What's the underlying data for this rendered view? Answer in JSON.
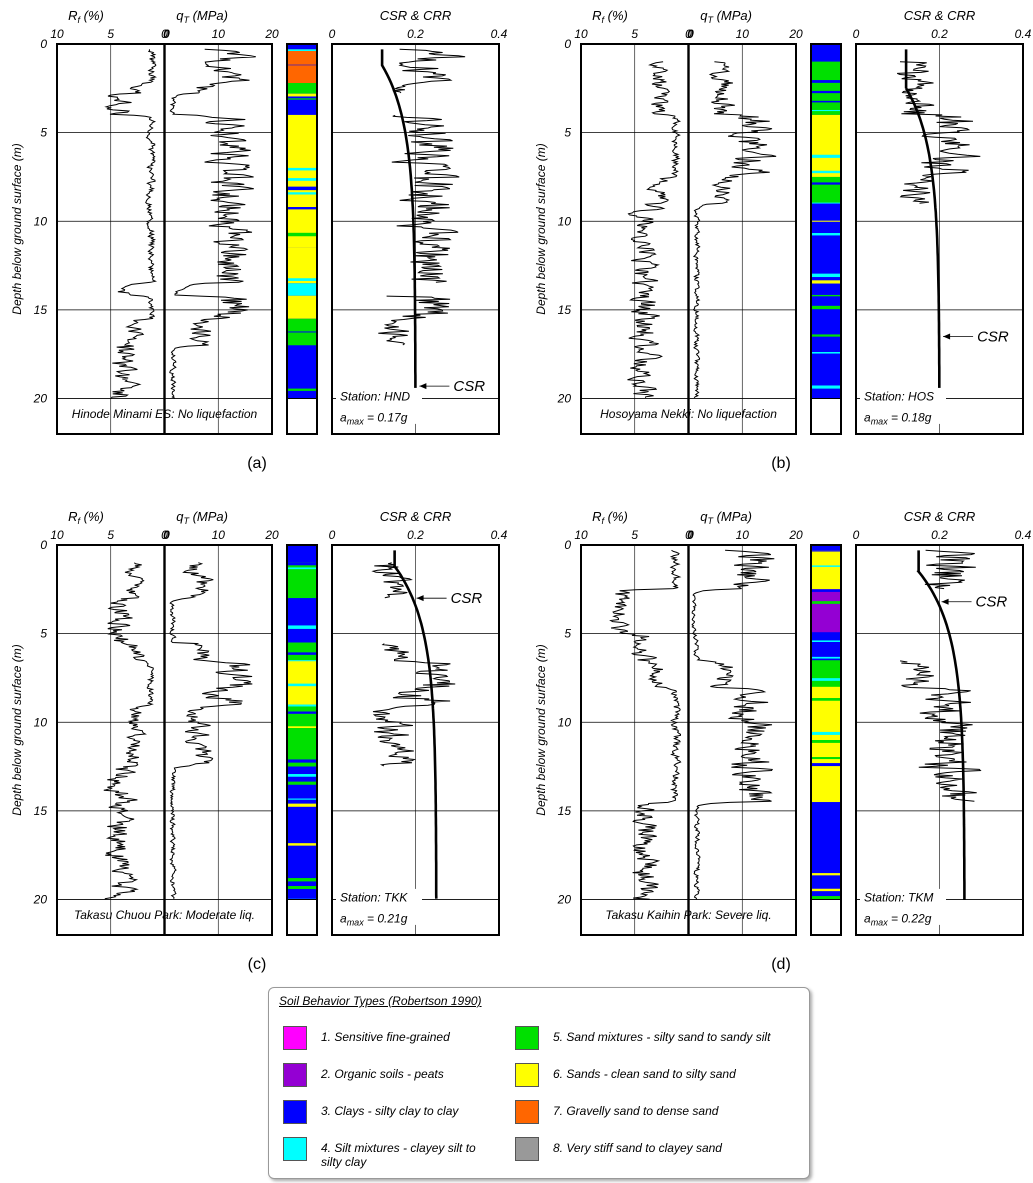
{
  "chart_data": [
    {
      "type": "line",
      "panel_label": "(a)",
      "site": "Hinode Minami ES: No liquefaction",
      "station": "Station: HND",
      "amax_prefix": "a",
      "amax_sub": "max",
      "amax_value": " = 0.17g",
      "csr_label": "CSR",
      "csr_ann_depth": 19.3,
      "csr": {
        "shallow": 1.2,
        "start": 0.12,
        "deep": 0.2
      },
      "soil_layers": [
        {
          "from": 0.3,
          "to": 1.2,
          "type": 7
        },
        {
          "from": 1.2,
          "to": 2.2,
          "type": 7
        },
        {
          "from": 2.2,
          "to": 2.8,
          "type": 5
        },
        {
          "from": 2.8,
          "to": 4.0,
          "type": 3
        },
        {
          "from": 4.0,
          "to": 11.5,
          "type": 6
        },
        {
          "from": 11.5,
          "to": 13.5,
          "type": 6
        },
        {
          "from": 13.5,
          "to": 14.2,
          "type": 4
        },
        {
          "from": 14.2,
          "to": 15.5,
          "type": 6
        },
        {
          "from": 15.5,
          "to": 17.0,
          "type": 5
        },
        {
          "from": 17.0,
          "to": 20.0,
          "type": 3
        }
      ],
      "seed": 11
    },
    {
      "type": "line",
      "panel_label": "(b)",
      "site": "Hosoyama Nekki: No liquefaction",
      "station": "Station: HOS",
      "amax_prefix": "a",
      "amax_sub": "max",
      "amax_value": " = 0.18g",
      "csr_label": "CSR",
      "csr_ann_depth": 16.5,
      "csr": {
        "shallow": 2.5,
        "start": 0.12,
        "deep": 0.2
      },
      "soil_layers": [
        {
          "from": 1.0,
          "to": 4.0,
          "type": 5
        },
        {
          "from": 4.0,
          "to": 7.5,
          "type": 6
        },
        {
          "from": 7.5,
          "to": 9.0,
          "type": 5
        },
        {
          "from": 9.0,
          "to": 20.0,
          "type": 3
        }
      ],
      "seed": 23
    },
    {
      "type": "line",
      "panel_label": "(c)",
      "site": "Takasu Chuou Park: Moderate liq.",
      "station": "Station: TKK",
      "amax_prefix": "a",
      "amax_sub": "max",
      "amax_value": " = 0.21g",
      "csr_label": "CSR",
      "csr_ann_depth": 3.0,
      "csr": {
        "shallow": 1.2,
        "start": 0.15,
        "deep": 0.25
      },
      "soil_layers": [
        {
          "from": 1.0,
          "to": 3.0,
          "type": 5
        },
        {
          "from": 3.0,
          "to": 5.5,
          "type": 3
        },
        {
          "from": 5.5,
          "to": 6.5,
          "type": 5
        },
        {
          "from": 6.5,
          "to": 9.0,
          "type": 6
        },
        {
          "from": 9.0,
          "to": 12.5,
          "type": 5
        },
        {
          "from": 12.5,
          "to": 20.0,
          "type": 3
        }
      ],
      "seed": 37
    },
    {
      "type": "line",
      "panel_label": "(d)",
      "site": "Takasu Kaihin Park: Severe liq.",
      "station": "Station: TKM",
      "amax_prefix": "a",
      "amax_sub": "max",
      "amax_value": " = 0.22g",
      "csr_label": "CSR",
      "csr_ann_depth": 3.2,
      "csr": {
        "shallow": 1.5,
        "start": 0.15,
        "deep": 0.26
      },
      "soil_layers": [
        {
          "from": 0.3,
          "to": 2.5,
          "type": 6
        },
        {
          "from": 2.5,
          "to": 5.0,
          "type": 2
        },
        {
          "from": 5.0,
          "to": 6.5,
          "type": 3
        },
        {
          "from": 6.5,
          "to": 8.0,
          "type": 5
        },
        {
          "from": 8.0,
          "to": 11.0,
          "type": 6
        },
        {
          "from": 11.0,
          "to": 14.5,
          "type": 6
        },
        {
          "from": 14.5,
          "to": 20.0,
          "type": 3
        }
      ],
      "seed": 53
    }
  ],
  "axes": {
    "rf_title_main": "R",
    "rf_title_sub": "f",
    "rf_title_rest": " (%)",
    "qt_title_main": "q",
    "qt_title_sub": "T",
    "qt_title_rest": " (MPa)",
    "csr_title": "CSR & CRR",
    "rf_ticks": [
      "10",
      "5",
      "0"
    ],
    "qt_ticks": [
      "0",
      "10",
      "20"
    ],
    "csr_ticks": [
      "0",
      "0.2",
      "0.4"
    ],
    "depth_ticks": [
      "0",
      "5",
      "10",
      "15",
      "20"
    ],
    "ylabel": "Depth below ground surface (m)",
    "depth_range": [
      0,
      22
    ],
    "rf_range": [
      10,
      0
    ],
    "qt_range": [
      0,
      20
    ],
    "csr_range": [
      0,
      0.4
    ]
  },
  "legend": {
    "title": "Soil Behavior Types (Robertson 1990)",
    "items": [
      {
        "label": "1. Sensitive fine-grained",
        "color": "#ff00ff"
      },
      {
        "label": "2. Organic soils - peats",
        "color": "#9400d3"
      },
      {
        "label": "3. Clays - silty clay to clay",
        "color": "#0000ff"
      },
      {
        "label": "4. Silt mixtures - clayey silt to silty clay",
        "color": "#00ffff"
      },
      {
        "label": "5. Sand mixtures - silty sand to sandy silt",
        "color": "#00e000"
      },
      {
        "label": "6. Sands - clean sand to silty sand",
        "color": "#ffff00"
      },
      {
        "label": "7. Gravelly sand to dense sand",
        "color": "#ff6600"
      },
      {
        "label": "8. Very stiff sand to clayey sand",
        "color": "#999999"
      }
    ]
  }
}
